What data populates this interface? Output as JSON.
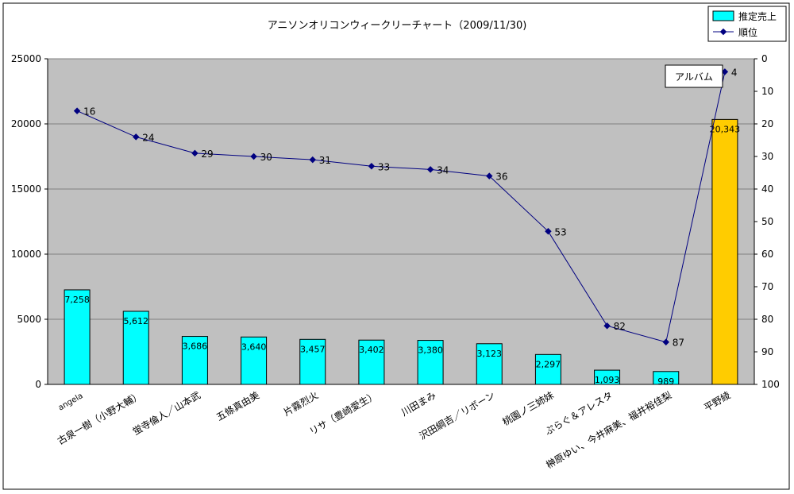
{
  "chart_data": {
    "type": "bar",
    "title": "アニソンオリコンウィークリーチャート（2009/11/30)",
    "categories": [
      "angela",
      "古泉一樹（小野大輔）",
      "蛍寺倫人／山本武",
      "五條真由美",
      "片霧烈火",
      "リサ（豊崎愛生）",
      "川田まみ",
      "沢田綱吉／リボーン",
      "桃園ノ三姉妹",
      "ぷらぐ＆アレスタ",
      "榊原ゆい、今井麻美、福井裕佳梨",
      "平野綾"
    ],
    "series": [
      {
        "name": "推定売上",
        "kind": "bar",
        "axis": "left",
        "values": [
          7258,
          5612,
          3686,
          3640,
          3457,
          3402,
          3380,
          3123,
          2297,
          1093,
          989,
          20343
        ],
        "value_labels": [
          "7,258",
          "5,612",
          "3,686",
          "3,640",
          "3,457",
          "3,402",
          "3,380",
          "3,123",
          "2,297",
          "1,093",
          "989",
          "20,343"
        ]
      },
      {
        "name": "順位",
        "kind": "line",
        "axis": "right",
        "values": [
          16,
          24,
          29,
          30,
          31,
          33,
          34,
          36,
          53,
          82,
          87,
          4
        ]
      }
    ],
    "left_axis": {
      "min": 0,
      "max": 25000,
      "ticks": [
        0,
        5000,
        10000,
        15000,
        20000,
        25000
      ],
      "tick_labels": [
        "0",
        "5000",
        "10000",
        "15000",
        "20000",
        "25000"
      ]
    },
    "right_axis": {
      "min": 0,
      "max": 100,
      "reversed": true,
      "ticks": [
        0,
        10,
        20,
        30,
        40,
        50,
        60,
        70,
        80,
        90,
        100
      ],
      "tick_labels": [
        "0",
        "10",
        "20",
        "30",
        "40",
        "50",
        "60",
        "70",
        "80",
        "90",
        "100"
      ]
    },
    "annotation": "アルバム",
    "highlight_index": 11,
    "colors": {
      "bar": "#00ffff",
      "bar_highlight": "#ffcc00",
      "line": "#000080",
      "plot_bg": "#c0c0c0",
      "grid": "#808080"
    },
    "legend_position": "top-right",
    "grid": true
  }
}
